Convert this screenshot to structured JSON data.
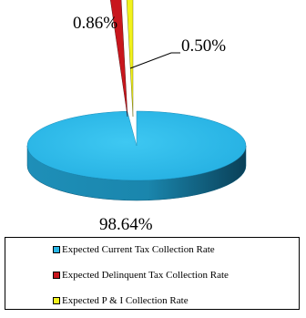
{
  "chart_data": {
    "type": "pie",
    "title": "",
    "slices": [
      {
        "label": "Expected Current Tax Collection Rate",
        "value": 98.64,
        "display": "98.64%",
        "color": "#29b6e6"
      },
      {
        "label": "Expected Delinquent Tax Collection Rate",
        "value": 0.86,
        "display": "0.86%",
        "color": "#c8161d"
      },
      {
        "label": "Expected P & I Collection Rate",
        "value": 0.5,
        "display": "0.50%",
        "color": "#f2f21c"
      }
    ],
    "style": "3d-exploded",
    "legend_position": "bottom"
  }
}
